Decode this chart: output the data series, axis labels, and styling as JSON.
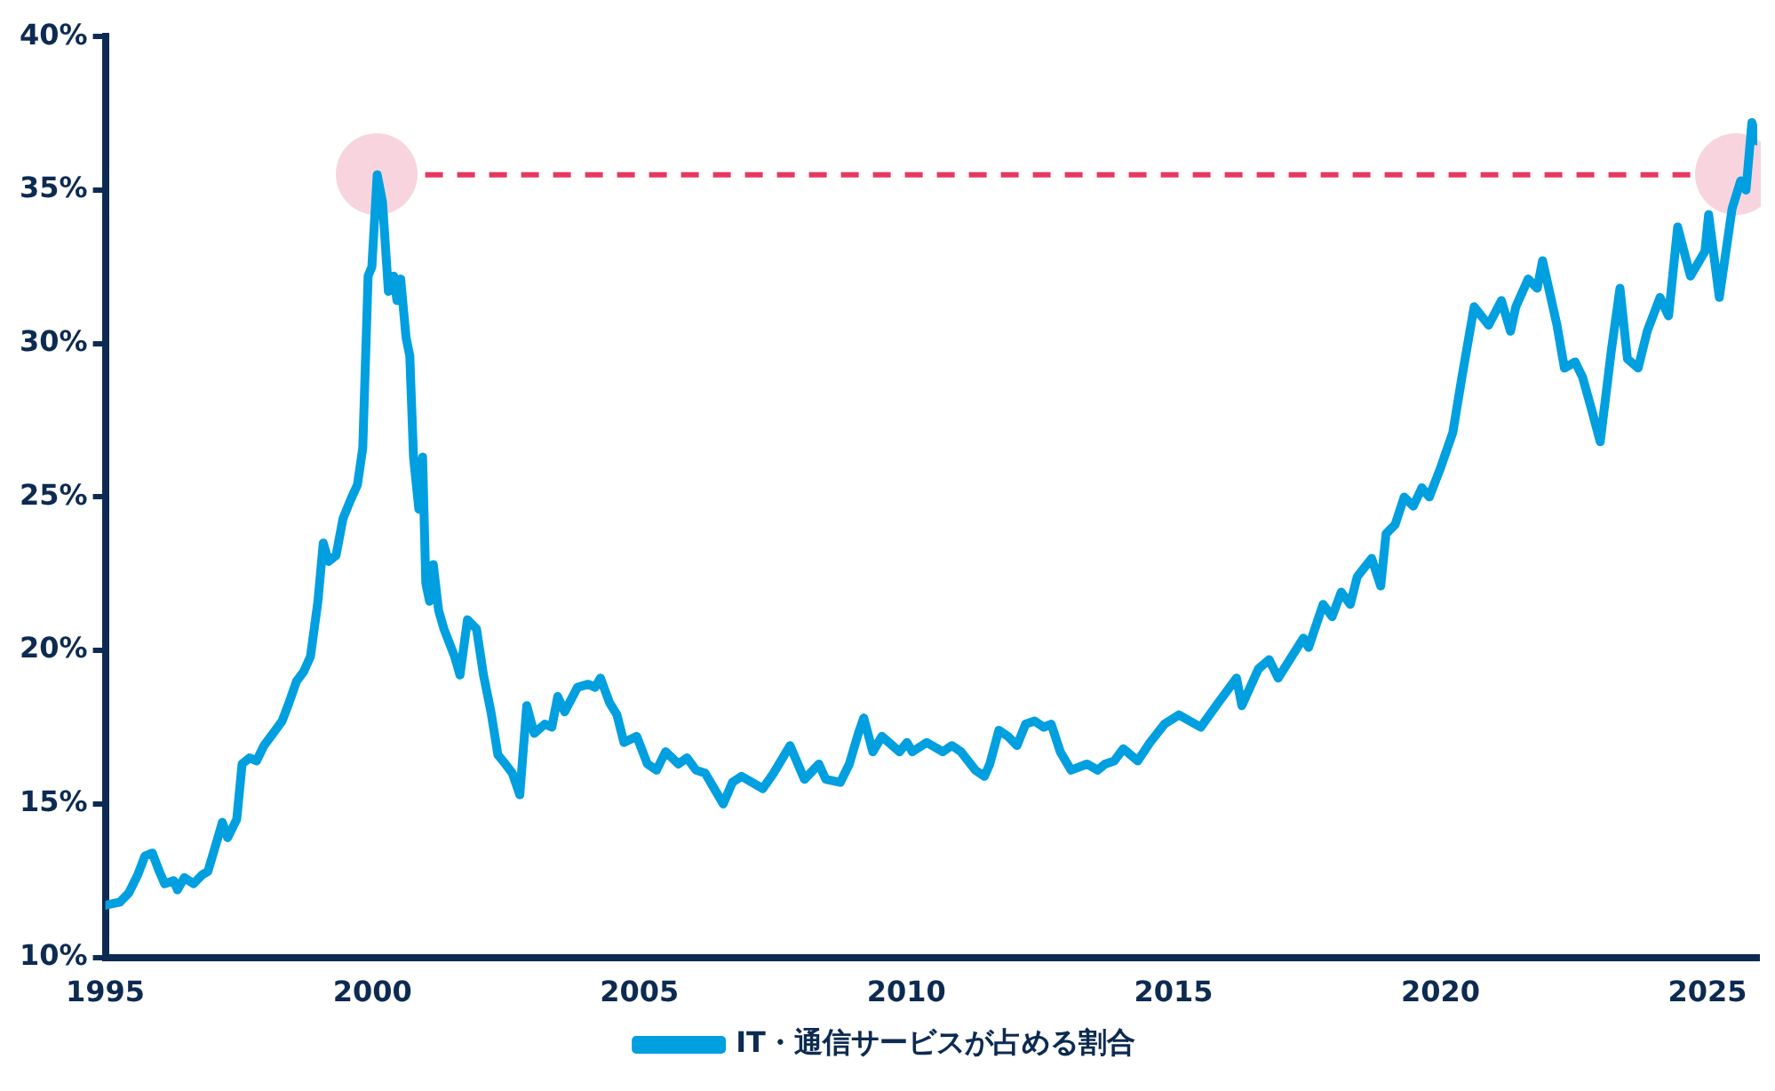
{
  "chart_data": {
    "type": "line",
    "x": [
      1995.0,
      1995.27,
      1995.44,
      1995.61,
      1995.74,
      1995.88,
      1996.01,
      1996.11,
      1996.28,
      1996.35,
      1996.48,
      1996.65,
      1996.82,
      1996.92,
      1997.09,
      1997.19,
      1997.29,
      1997.46,
      1997.56,
      1997.7,
      1997.83,
      1997.97,
      1998.14,
      1998.31,
      1998.44,
      1998.58,
      1998.71,
      1998.84,
      1998.98,
      1999.08,
      1999.18,
      1999.32,
      1999.45,
      1999.59,
      1999.72,
      1999.82,
      1999.92,
      1999.99,
      2000.09,
      2000.19,
      2000.3,
      2000.4,
      2000.46,
      2000.53,
      2000.63,
      2000.7,
      2000.77,
      2000.87,
      2000.94,
      2001.0,
      2001.07,
      2001.14,
      2001.24,
      2001.34,
      2001.54,
      2001.64,
      2001.78,
      2001.95,
      2002.08,
      2002.22,
      2002.35,
      2002.49,
      2002.62,
      2002.76,
      2002.89,
      2003.03,
      2003.23,
      2003.36,
      2003.47,
      2003.6,
      2003.84,
      2004.04,
      2004.17,
      2004.27,
      2004.44,
      2004.58,
      2004.71,
      2004.95,
      2005.15,
      2005.32,
      2005.49,
      2005.73,
      2005.89,
      2006.06,
      2006.23,
      2006.57,
      2006.74,
      2006.91,
      2007.31,
      2007.51,
      2007.82,
      2008.09,
      2008.36,
      2008.49,
      2008.76,
      2008.93,
      2009.1,
      2009.2,
      2009.37,
      2009.54,
      2009.87,
      2010.01,
      2010.11,
      2010.38,
      2010.68,
      2010.85,
      2011.02,
      2011.29,
      2011.46,
      2011.56,
      2011.73,
      2011.9,
      2012.07,
      2012.23,
      2012.4,
      2012.57,
      2012.71,
      2012.88,
      2013.08,
      2013.38,
      2013.58,
      2013.72,
      2013.89,
      2014.06,
      2014.33,
      2014.56,
      2014.83,
      2015.1,
      2015.51,
      2015.84,
      2016.18,
      2016.28,
      2016.59,
      2016.79,
      2016.96,
      2017.43,
      2017.53,
      2017.8,
      2017.97,
      2018.14,
      2018.31,
      2018.44,
      2018.71,
      2018.88,
      2018.98,
      2019.15,
      2019.32,
      2019.49,
      2019.65,
      2019.79,
      2019.99,
      2020.23,
      2020.4,
      2020.63,
      2020.9,
      2021.14,
      2021.31,
      2021.41,
      2021.64,
      2021.81,
      2021.91,
      2022.18,
      2022.32,
      2022.52,
      2022.66,
      2022.82,
      2022.99,
      2023.2,
      2023.36,
      2023.5,
      2023.7,
      2023.87,
      2024.11,
      2024.27,
      2024.44,
      2024.68,
      2024.95,
      2025.02,
      2025.22,
      2025.46,
      2025.62,
      2025.72,
      2025.83,
      2025.93
    ],
    "series": [
      {
        "name": "IT・通信サービスが占める割合",
        "color": "#009fe0",
        "values": [
          11.7,
          11.8,
          12.1,
          12.7,
          13.3,
          13.4,
          12.8,
          12.4,
          12.5,
          12.2,
          12.6,
          12.4,
          12.7,
          12.8,
          13.8,
          14.4,
          13.9,
          14.5,
          16.3,
          16.5,
          16.4,
          16.9,
          17.3,
          17.7,
          18.3,
          19.0,
          19.3,
          19.8,
          21.6,
          23.5,
          22.9,
          23.1,
          24.3,
          24.9,
          25.4,
          26.6,
          32.2,
          32.5,
          35.5,
          34.6,
          31.7,
          32.2,
          31.4,
          32.1,
          30.2,
          29.6,
          26.3,
          24.6,
          26.3,
          22.2,
          21.6,
          22.8,
          21.3,
          20.7,
          19.8,
          19.2,
          21.0,
          20.7,
          19.2,
          18.0,
          16.6,
          16.3,
          16.0,
          15.3,
          18.2,
          17.3,
          17.6,
          17.5,
          18.5,
          18.0,
          18.8,
          18.9,
          18.8,
          19.1,
          18.3,
          17.9,
          17.0,
          17.2,
          16.3,
          16.1,
          16.7,
          16.3,
          16.5,
          16.1,
          16.0,
          15.0,
          15.7,
          15.9,
          15.5,
          16.0,
          16.9,
          15.8,
          16.3,
          15.8,
          15.7,
          16.3,
          17.3,
          17.8,
          16.7,
          17.2,
          16.7,
          17.0,
          16.7,
          17.0,
          16.7,
          16.9,
          16.7,
          16.1,
          15.9,
          16.3,
          17.4,
          17.2,
          16.9,
          17.6,
          17.7,
          17.5,
          17.6,
          16.7,
          16.1,
          16.3,
          16.1,
          16.3,
          16.4,
          16.8,
          16.4,
          17.0,
          17.6,
          17.9,
          17.5,
          18.3,
          19.1,
          18.2,
          19.4,
          19.7,
          19.1,
          20.4,
          20.1,
          21.5,
          21.1,
          21.9,
          21.5,
          22.4,
          23.0,
          22.1,
          23.8,
          24.1,
          25.0,
          24.7,
          25.3,
          25.0,
          25.9,
          27.1,
          28.9,
          31.2,
          30.6,
          31.4,
          30.4,
          31.2,
          32.1,
          31.8,
          32.7,
          30.6,
          29.2,
          29.4,
          28.9,
          27.9,
          26.8,
          29.8,
          31.8,
          29.5,
          29.2,
          30.4,
          31.5,
          30.9,
          33.8,
          32.2,
          33.0,
          34.2,
          31.5,
          34.4,
          35.3,
          35.0,
          37.2,
          36.6
        ]
      }
    ],
    "xlim": [
      1995,
      2025.93
    ],
    "xticks": [
      1995,
      2000,
      2005,
      2010,
      2015,
      2020,
      2025
    ],
    "ylim": [
      10,
      40
    ],
    "yticks": [
      {
        "value": 10,
        "label": "10%"
      },
      {
        "value": 15,
        "label": "15%"
      },
      {
        "value": 20,
        "label": "20%"
      },
      {
        "value": 25,
        "label": "25%"
      },
      {
        "value": 30,
        "label": "30%"
      },
      {
        "value": 35,
        "label": "35%"
      },
      {
        "value": 40,
        "label": "40%"
      }
    ],
    "ref_lines": [
      {
        "axis": "y",
        "value": 35.5,
        "color": "#e8385f",
        "line_style": "dashed"
      }
    ],
    "grid": false,
    "legend": "bottom",
    "marker": "none",
    "line_style": "solid"
  }
}
